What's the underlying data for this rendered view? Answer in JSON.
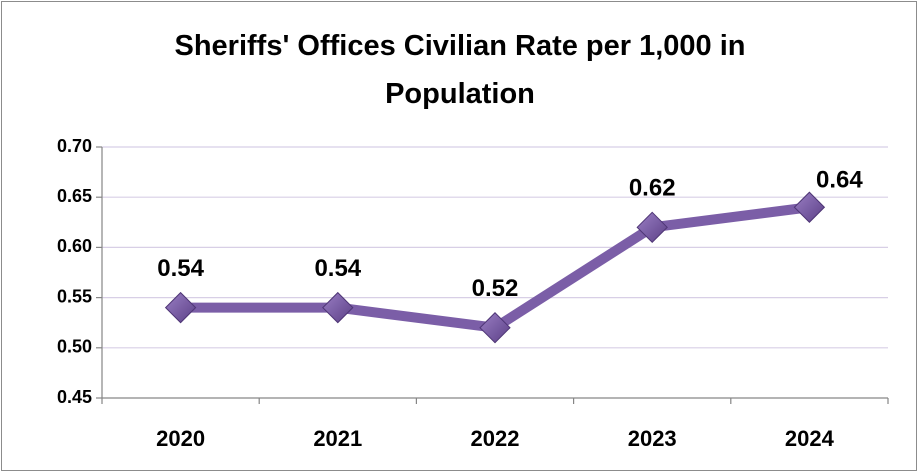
{
  "chart_data": {
    "type": "line",
    "title": "Sheriffs' Offices Civilian Rate per 1,000 in Population",
    "categories": [
      "2020",
      "2021",
      "2022",
      "2023",
      "2024"
    ],
    "values": [
      0.54,
      0.54,
      0.52,
      0.62,
      0.64
    ],
    "color": "#7b5ea7",
    "ylim": [
      0.45,
      0.7
    ],
    "yticks": [
      {
        "value": 0.45,
        "label": "0.45"
      },
      {
        "value": 0.5,
        "label": "0.50"
      },
      {
        "value": 0.55,
        "label": "0.55"
      },
      {
        "value": 0.6,
        "label": "0.60"
      },
      {
        "value": 0.65,
        "label": "0.65"
      },
      {
        "value": 0.7,
        "label": "0.70"
      }
    ],
    "grid": true
  }
}
